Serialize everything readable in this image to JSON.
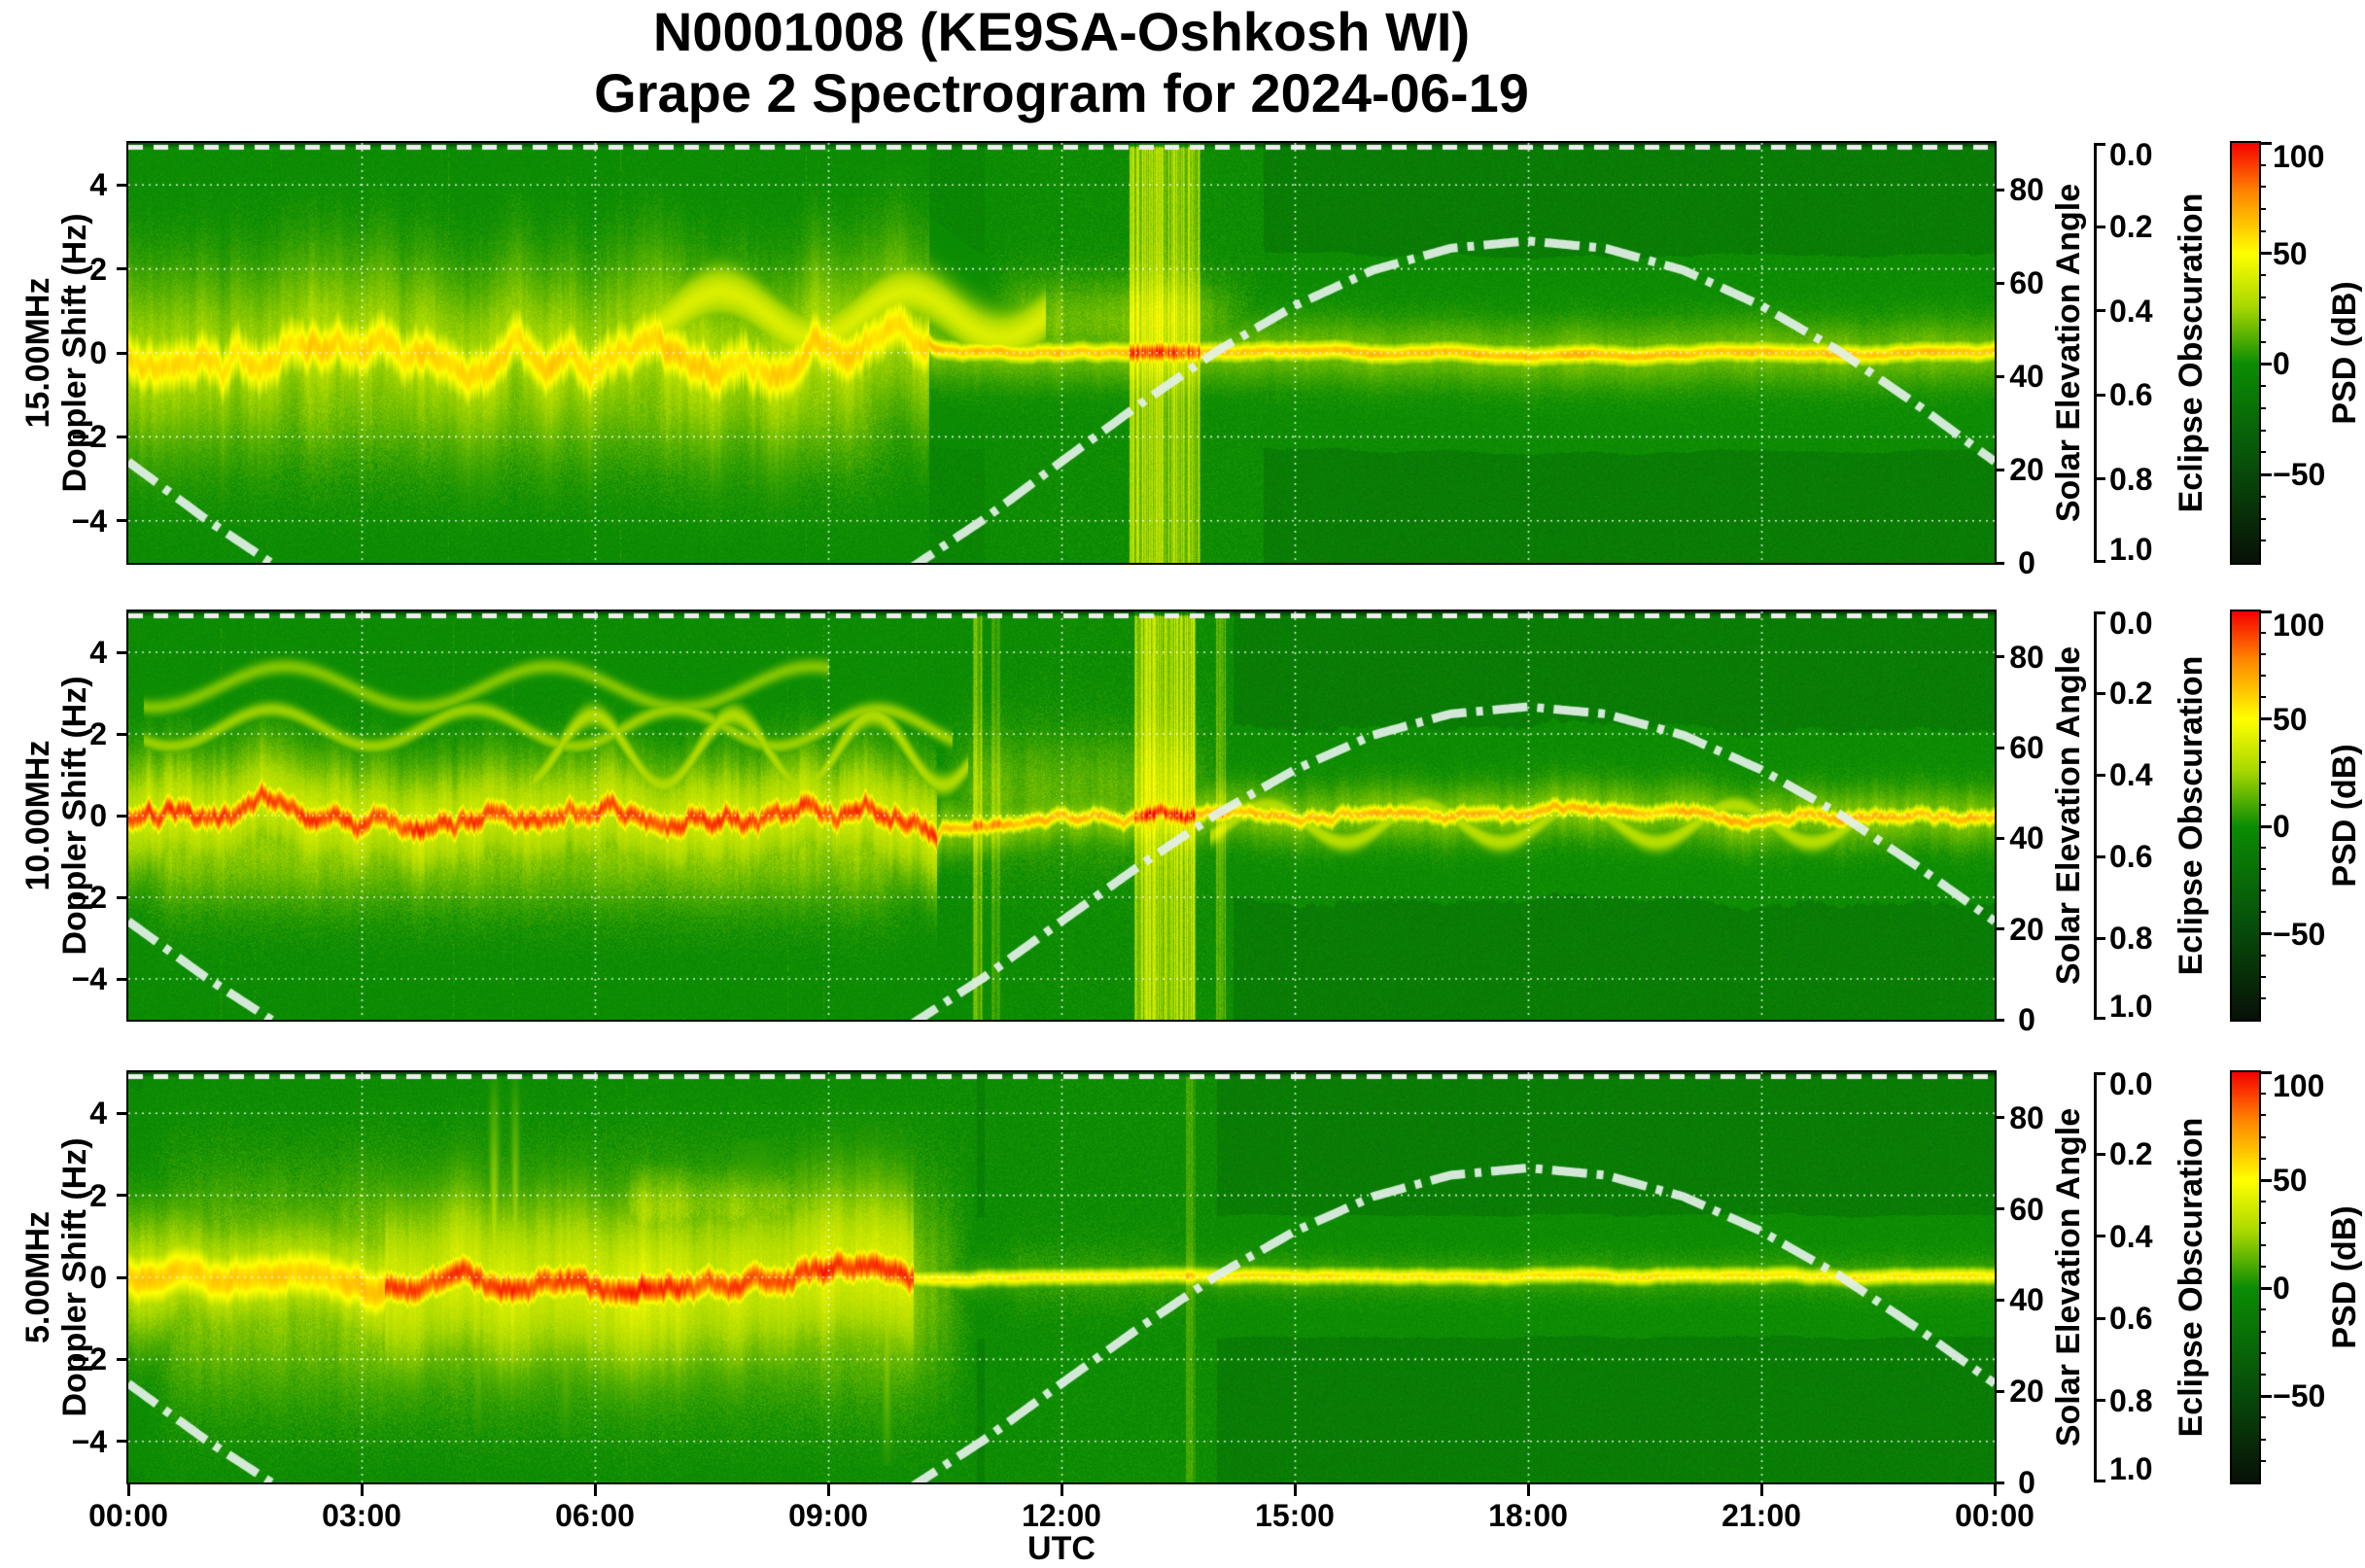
{
  "title": {
    "line1": "N0001008 (KE9SA-Oshkosh WI)",
    "line2": "Grape 2 Spectrogram for 2024-06-19",
    "node_id": "N0001008",
    "station": "KE9SA-Oshkosh WI",
    "instrument": "Grape 2 Spectrogram",
    "date": "2024-06-19"
  },
  "chart_data": {
    "type": "heatmap",
    "subtype": "doppler-spectrogram",
    "x": {
      "label": "UTC",
      "unit": "hours",
      "range": [
        0,
        24
      ],
      "tick_hours": [
        0,
        3,
        6,
        9,
        12,
        15,
        18,
        21,
        24
      ],
      "tick_labels": [
        "00:00",
        "03:00",
        "06:00",
        "09:00",
        "12:00",
        "15:00",
        "18:00",
        "21:00",
        "00:00"
      ],
      "grid": true
    },
    "doppler_axis": {
      "label": "Doppler Shift (Hz)",
      "range": [
        -5,
        5
      ],
      "tick_values": [
        4,
        2,
        0,
        -2,
        -4
      ],
      "tick_labels": [
        "4",
        "2",
        "0",
        "−2",
        "−4"
      ],
      "grid": true
    },
    "solar_elevation": {
      "label": "Solar Elevation Angle",
      "range": [
        0,
        90
      ],
      "tick_values": [
        0,
        20,
        40,
        60,
        80
      ],
      "tick_labels": [
        "0",
        "20",
        "40",
        "60",
        "80"
      ],
      "line_style": "dash-dot",
      "hours": [
        0,
        1,
        2,
        3,
        4,
        5,
        6,
        7,
        8,
        9,
        10,
        11,
        12,
        13,
        14,
        15,
        16,
        17,
        18,
        19,
        20,
        21,
        22,
        23,
        24
      ],
      "values_deg": [
        21.7,
        9.3,
        -1.8,
        -11.6,
        -19.3,
        -24.0,
        -25.6,
        -24.0,
        -19.3,
        -11.6,
        -1.8,
        9.3,
        21.7,
        33.9,
        45.4,
        55.1,
        62.7,
        67.4,
        69.0,
        67.4,
        62.7,
        55.1,
        45.4,
        33.9,
        21.7
      ],
      "sunrise_utc_h": 10.2,
      "sunset_utc_h": 1.9,
      "peak_deg": 69.0,
      "peak_utc_h": 18.0
    },
    "eclipse_obscuration": {
      "label": "Eclipse Obscuration",
      "range": [
        0,
        1
      ],
      "tick_values": [
        0.0,
        0.2,
        0.4,
        0.6,
        0.8,
        1.0
      ],
      "tick_labels": [
        "0.0",
        "0.2",
        "0.4",
        "0.6",
        "0.8",
        "1.0"
      ],
      "constant_value": 0.0,
      "line_style": "dashed"
    },
    "colorbar": {
      "label": "PSD (dB)",
      "range": [
        -90,
        100
      ],
      "tick_values": [
        100,
        50,
        0,
        -50
      ],
      "tick_labels": [
        "100",
        "50",
        "0",
        "−50"
      ],
      "minor_tick_step": 10,
      "stops": [
        {
          "v": 100,
          "c": "#f60000"
        },
        {
          "v": 78,
          "c": "#ff8400"
        },
        {
          "v": 50,
          "c": "#ffff00"
        },
        {
          "v": 26,
          "c": "#a8d800"
        },
        {
          "v": 0,
          "c": "#0b8c04"
        },
        {
          "v": -45,
          "c": "#07500a"
        },
        {
          "v": -90,
          "c": "#081007"
        }
      ]
    },
    "panels": [
      {
        "freq_label": "15.00MHz",
        "ylabel": "Doppler Shift (Hz)",
        "seed": 101,
        "day_fade": [
          10.2,
          14.0
        ],
        "carrier_segments": [
          {
            "t": [
              0,
              10.3
            ],
            "peak_db": 58,
            "width_hz": 0.5,
            "wander_hz": 0.6,
            "halo_db": 38,
            "halo_width_hz": 1.5
          },
          {
            "t": [
              10.3,
              24
            ],
            "peak_db": 62,
            "width_hz": 0.16,
            "wander_hz": 0.07,
            "halo_db": 24,
            "halo_width_hz": 0.55
          }
        ],
        "clouds": [
          {
            "t": [
              0,
              10.3
            ],
            "f": [
              -3.3,
              1.8
            ],
            "db": 26
          },
          {
            "t": [
              11,
              14.6
            ],
            "f": [
              -0.6,
              2.1
            ],
            "db": 22
          }
        ],
        "ripples": [
          {
            "t": [
              6.8,
              11.8
            ],
            "f0": 0.9,
            "amp": 0.55,
            "period": 2.4,
            "db": 40,
            "width_hz": 0.45
          }
        ],
        "plumes": [],
        "stripes": [
          {
            "t": [
              12.87,
              13.78
            ],
            "db": 26
          }
        ]
      },
      {
        "freq_label": "10.00MHz",
        "ylabel": "Doppler Shift (Hz)",
        "seed": 202,
        "day_fade": [
          10.4,
          14.2
        ],
        "carrier_segments": [
          {
            "t": [
              0,
              10.4
            ],
            "peak_db": 88,
            "width_hz": 0.24,
            "wander_hz": 0.5,
            "halo_db": 50,
            "halo_width_hz": 1.0
          },
          {
            "t": [
              10.4,
              24
            ],
            "peak_db": 64,
            "width_hz": 0.15,
            "wander_hz": 0.22,
            "halo_db": 28,
            "halo_width_hz": 0.5
          }
        ],
        "clouds": [
          {
            "t": [
              0,
              10.4
            ],
            "f": [
              -2.7,
              1.3
            ],
            "db": 30
          },
          {
            "t": [
              10.4,
              14.2
            ],
            "f": [
              -1.5,
              2.5
            ],
            "db": 18
          }
        ],
        "ripples": [
          {
            "t": [
              0.2,
              10.6
            ],
            "f0": 2.15,
            "amp": 0.45,
            "period": 2.6,
            "db": 24,
            "width_hz": 0.14
          },
          {
            "t": [
              0.2,
              9.0
            ],
            "f0": 3.15,
            "amp": 0.5,
            "period": 3.4,
            "db": 20,
            "width_hz": 0.14
          },
          {
            "t": [
              5.2,
              10.8
            ],
            "f0": 1.6,
            "amp": 0.85,
            "period": 1.8,
            "db": 28,
            "width_hz": 0.2
          },
          {
            "t": [
              13.9,
              22.2
            ],
            "f0": -0.2,
            "amp": 0.45,
            "period": 2.0,
            "db": 30,
            "width_hz": 0.18
          }
        ],
        "plumes": [],
        "stripes": [
          {
            "t": [
              12.93,
              13.72
            ],
            "db": 30
          },
          {
            "t": [
              10.86,
              10.98
            ],
            "db": 16
          },
          {
            "t": [
              11.1,
              11.2
            ],
            "db": 12
          },
          {
            "t": [
              13.98,
              14.1
            ],
            "db": 12
          }
        ]
      },
      {
        "freq_label": "5.00MHz",
        "ylabel": "Doppler Shift (Hz)",
        "seed": 303,
        "day_fade": [
          9.9,
          11.6
        ],
        "carrier_segments": [
          {
            "t": [
              0,
              3.3
            ],
            "peak_db": 60,
            "width_hz": 0.5,
            "wander_hz": 0.3,
            "halo_db": 46,
            "halo_width_hz": 1.1
          },
          {
            "t": [
              3.3,
              10.1
            ],
            "peak_db": 88,
            "width_hz": 0.3,
            "wander_hz": 0.4,
            "halo_db": 52,
            "halo_width_hz": 1.5
          },
          {
            "t": [
              10.1,
              24
            ],
            "peak_db": 54,
            "width_hz": 0.13,
            "wander_hz": 0.05,
            "halo_db": 12,
            "halo_width_hz": 0.35
          }
        ],
        "clouds": [
          {
            "t": [
              0.2,
              10.9
            ],
            "f": [
              -3.6,
              3.0
            ],
            "db": 30
          },
          {
            "t": [
              6.1,
              9.2
            ],
            "f": [
              0.2,
              3.0
            ],
            "db": 30
          },
          {
            "t": [
              11,
              14
            ],
            "f": [
              -1.0,
              1.0
            ],
            "db": 10
          }
        ],
        "ripples": [],
        "plumes": [
          {
            "t": 4.7,
            "tw": 0.07,
            "f": [
              0,
              4.9
            ],
            "db": 38
          },
          {
            "t": 4.97,
            "tw": 0.06,
            "f": [
              0,
              4.9
            ],
            "db": 34
          },
          {
            "t": 3.0,
            "tw": 0.12,
            "f": [
              0,
              3.2
            ],
            "db": 26
          },
          {
            "t": 8.05,
            "tw": 0.35,
            "f": [
              0,
              3.4
            ],
            "db": 26
          },
          {
            "t": 1.95,
            "tw": 0.08,
            "f": [
              -3.4,
              0
            ],
            "db": 30
          },
          {
            "t": 3.42,
            "tw": 0.08,
            "f": [
              -3.2,
              0
            ],
            "db": 30
          },
          {
            "t": 4.5,
            "tw": 0.08,
            "f": [
              -3.8,
              0
            ],
            "db": 32
          },
          {
            "t": 5.62,
            "tw": 0.09,
            "f": [
              -3.9,
              0
            ],
            "db": 32
          },
          {
            "t": 6.62,
            "tw": 0.09,
            "f": [
              -3.3,
              0
            ],
            "db": 30
          },
          {
            "t": 7.12,
            "tw": 0.08,
            "f": [
              -2.9,
              0
            ],
            "db": 28
          },
          {
            "t": 7.66,
            "tw": 0.08,
            "f": [
              -3.2,
              0
            ],
            "db": 28
          },
          {
            "t": 9.75,
            "tw": 0.07,
            "f": [
              -4.6,
              0
            ],
            "db": 34
          }
        ],
        "stripes": [
          {
            "t": [
              13.6,
              13.72
            ],
            "db": 10
          }
        ]
      }
    ]
  },
  "style": {
    "background": "#ffffff",
    "spine_color": "#000000",
    "grid_color": "#ffffff",
    "solar_curve_color": "#e3f0e7",
    "obscuration_dash_color": "#eeeeee",
    "text_color": "#000000"
  }
}
